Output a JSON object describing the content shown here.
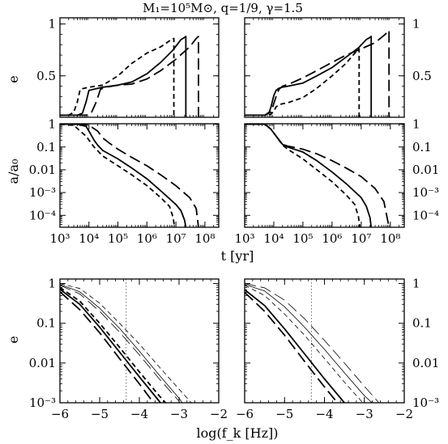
{
  "figure": {
    "title": "M₁=10⁵M⊙, q=1/9, γ=1.5",
    "ecc_label": "e",
    "sma_label": "a/a₀",
    "time_label": "t [yr]",
    "freq_label": "log(f_k [Hz])",
    "ecc_bottom_label": "e"
  },
  "chart_data": [
    {
      "id": "ecc_vs_time_left",
      "type": "line",
      "xscale": "log",
      "xlim": [
        1000,
        300000000
      ],
      "ylim": [
        0.1,
        1.06
      ],
      "ytick_labels": [
        "0.5",
        "1"
      ],
      "ytick_values": [
        0.5,
        1
      ],
      "xtick_labels": [],
      "ylabel": "e",
      "series": [
        {
          "style": "solid",
          "x": [
            1000,
            4000,
            6000,
            8000,
            10000,
            30000,
            100000,
            300000,
            1000000,
            3000000,
            8000000,
            15000000,
            20000000,
            22000000,
            22000000,
            22500000
          ],
          "y": [
            0.12,
            0.12,
            0.14,
            0.25,
            0.36,
            0.39,
            0.41,
            0.44,
            0.52,
            0.63,
            0.75,
            0.85,
            0.87,
            0.88,
            0.12,
            0.1
          ]
        },
        {
          "style": "shortdash",
          "x": [
            1000,
            2000,
            3000,
            4000,
            5000,
            10000,
            30000,
            100000,
            300000,
            1000000,
            3000000,
            7000000,
            8500000,
            8500000,
            9000000
          ],
          "y": [
            0.12,
            0.12,
            0.15,
            0.25,
            0.37,
            0.39,
            0.41,
            0.5,
            0.62,
            0.72,
            0.78,
            0.85,
            0.86,
            0.12,
            0.1
          ]
        },
        {
          "style": "longdash",
          "x": [
            1000,
            8000,
            12000,
            18000,
            25000,
            40000,
            100000,
            300000,
            1000000,
            3000000,
            10000000,
            30000000,
            50000000,
            60000000,
            60000000,
            62000000
          ],
          "y": [
            0.12,
            0.12,
            0.14,
            0.25,
            0.37,
            0.39,
            0.41,
            0.42,
            0.47,
            0.55,
            0.66,
            0.78,
            0.86,
            0.88,
            0.12,
            0.1
          ]
        }
      ]
    },
    {
      "id": "ecc_vs_time_right",
      "type": "line",
      "xscale": "log",
      "xlim": [
        1000,
        300000000
      ],
      "ylim": [
        0.1,
        1.06
      ],
      "ytick_labels": [
        "0.5",
        "1"
      ],
      "ytick_values": [
        0.5,
        1
      ],
      "xtick_labels": [],
      "ylabel": "e",
      "series": [
        {
          "style": "solid",
          "x": [
            1000,
            5000,
            7000,
            8000,
            10000,
            12000,
            15000,
            20000,
            30000,
            100000,
            300000,
            1000000,
            3000000,
            8000000,
            15000000,
            20000000,
            22000000,
            22000000,
            22500000
          ],
          "y": [
            0.12,
            0.12,
            0.15,
            0.2,
            0.31,
            0.36,
            0.38,
            0.39,
            0.4,
            0.43,
            0.5,
            0.58,
            0.68,
            0.77,
            0.85,
            0.87,
            0.88,
            0.12,
            0.1
          ]
        },
        {
          "style": "shortdash",
          "x": [
            1000,
            6000,
            8000,
            10000,
            12000,
            15000,
            20000,
            30000,
            100000,
            300000,
            1000000,
            3000000,
            7000000,
            8500000,
            8500000,
            9000000
          ],
          "y": [
            0.12,
            0.12,
            0.13,
            0.16,
            0.2,
            0.22,
            0.23,
            0.24,
            0.29,
            0.38,
            0.5,
            0.62,
            0.74,
            0.76,
            0.12,
            0.1
          ]
        },
        {
          "style": "longdash",
          "x": [
            1000,
            5000,
            8000,
            12000,
            15000,
            20000,
            40000,
            100000,
            300000,
            1000000,
            3000000,
            10000000,
            30000000,
            60000000,
            80000000,
            90000000,
            90000000,
            93000000
          ],
          "y": [
            0.12,
            0.12,
            0.15,
            0.3,
            0.37,
            0.4,
            0.43,
            0.48,
            0.55,
            0.63,
            0.7,
            0.76,
            0.82,
            0.89,
            0.92,
            0.94,
            0.12,
            0.1
          ]
        }
      ]
    },
    {
      "id": "sma_vs_time_left",
      "type": "line",
      "xscale": "log",
      "yscale": "log",
      "xlim": [
        1000,
        300000000
      ],
      "ylim": [
        3e-05,
        1.05
      ],
      "ytick_labels": [
        "1",
        "0.1",
        "0.01",
        "10⁻³",
        "10⁻⁴"
      ],
      "ytick_values": [
        1,
        0.1,
        0.01,
        0.001,
        0.0001
      ],
      "xtick_labels": [
        "10³",
        "10⁴",
        "10⁵",
        "10⁶",
        "10⁷",
        "10⁸"
      ],
      "xtick_values": [
        1000,
        10000,
        100000,
        1000000,
        10000000,
        100000000
      ],
      "ylabel": "a/a₀",
      "series": [
        {
          "style": "solid",
          "x": [
            1000,
            4000,
            8000,
            10000,
            15000,
            20000,
            30000,
            100000,
            300000,
            1000000,
            3000000,
            10000000,
            15000000,
            20000000,
            22000000
          ],
          "y": [
            1,
            1,
            0.8,
            0.5,
            0.2,
            0.12,
            0.07,
            0.03,
            0.012,
            0.004,
            0.0012,
            0.0003,
            0.00016,
            6e-05,
            3e-05
          ]
        },
        {
          "style": "shortdash",
          "x": [
            1000,
            3000,
            5000,
            8000,
            10000,
            15000,
            30000,
            100000,
            300000,
            1000000,
            3000000,
            6000000,
            8000000,
            9000000
          ],
          "y": [
            1,
            0.9,
            0.5,
            0.3,
            0.2,
            0.1,
            0.04,
            0.015,
            0.006,
            0.002,
            0.0006,
            0.00025,
            8e-05,
            3e-05
          ]
        },
        {
          "style": "longdash",
          "x": [
            1000,
            7000,
            10000,
            20000,
            30000,
            50000,
            100000,
            300000,
            1000000,
            3000000,
            10000000,
            30000000,
            50000000,
            60000000
          ],
          "y": [
            1,
            1,
            0.9,
            0.5,
            0.25,
            0.15,
            0.08,
            0.035,
            0.015,
            0.006,
            0.002,
            0.0006,
            0.0002,
            3e-05
          ]
        }
      ]
    },
    {
      "id": "sma_vs_time_right",
      "type": "line",
      "xscale": "log",
      "yscale": "log",
      "xlim": [
        1000,
        300000000
      ],
      "ylim": [
        3e-05,
        1.05
      ],
      "ytick_labels": [
        "1",
        "0.1",
        "0.01",
        "10⁻³",
        "10⁻⁴"
      ],
      "ytick_values": [
        1,
        0.1,
        0.01,
        0.001,
        0.0001
      ],
      "xtick_labels": [
        "10³",
        "10⁴",
        "10⁵",
        "10⁶",
        "10⁷",
        "10⁸"
      ],
      "xtick_values": [
        1000,
        10000,
        100000,
        1000000,
        10000000,
        100000000
      ],
      "ylabel": "a/a₀",
      "series": [
        {
          "style": "solid",
          "x": [
            1000,
            5000,
            8000,
            12000,
            20000,
            30000,
            100000,
            300000,
            1000000,
            3000000,
            10000000,
            15000000,
            20000000,
            22000000
          ],
          "y": [
            1,
            1,
            0.6,
            0.3,
            0.13,
            0.1,
            0.06,
            0.025,
            0.008,
            0.0025,
            0.0006,
            0.00025,
            8e-05,
            3e-05
          ]
        },
        {
          "style": "shortdash",
          "x": [
            1000,
            5000,
            8000,
            12000,
            20000,
            30000,
            100000,
            300000,
            1000000,
            3000000,
            6000000,
            8000000,
            9000000
          ],
          "y": [
            1,
            1,
            0.6,
            0.3,
            0.12,
            0.08,
            0.03,
            0.01,
            0.003,
            0.0008,
            0.0003,
            9e-05,
            3e-05
          ]
        },
        {
          "style": "longdash",
          "x": [
            1000,
            5000,
            8000,
            12000,
            20000,
            30000,
            100000,
            300000,
            1000000,
            3000000,
            10000000,
            30000000,
            60000000,
            90000000
          ],
          "y": [
            1,
            1,
            0.6,
            0.3,
            0.13,
            0.11,
            0.08,
            0.05,
            0.025,
            0.012,
            0.005,
            0.0015,
            0.0004,
            3e-05
          ]
        }
      ]
    },
    {
      "id": "ecc_vs_freq_left",
      "type": "line",
      "yscale": "log",
      "xlim": [
        -6,
        -2
      ],
      "ylim": [
        0.001,
        1.3
      ],
      "ytick_labels": [
        "1",
        "0.1",
        "0.01",
        "10⁻³"
      ],
      "ytick_values": [
        1,
        0.1,
        0.01,
        0.001
      ],
      "xtick_labels": [
        "−6",
        "−5",
        "−4",
        "−3",
        "−2"
      ],
      "xtick_values": [
        -6,
        -5,
        -4,
        -3,
        -2
      ],
      "ylabel": "e",
      "reference_x": -4.33,
      "series": [
        {
          "style": "longdash",
          "weight": "thick",
          "x": [
            -6,
            -5.5,
            -5,
            -4.5,
            -4,
            -3.5
          ],
          "y": [
            0.62,
            0.22,
            0.058,
            0.013,
            0.003,
            0.00065
          ]
        },
        {
          "style": "solid",
          "weight": "thick",
          "x": [
            -6,
            -5.5,
            -5,
            -4.5,
            -4,
            -3.5,
            -3.35
          ],
          "y": [
            0.72,
            0.3,
            0.08,
            0.019,
            0.0045,
            0.0011,
            0.0007
          ]
        },
        {
          "style": "shortdash",
          "weight": "thick",
          "x": [
            -6,
            -5.5,
            -5,
            -4.5,
            -4,
            -3.5,
            -3.3
          ],
          "y": [
            0.8,
            0.36,
            0.1,
            0.025,
            0.006,
            0.0015,
            0.0009
          ]
        },
        {
          "style": "longdash",
          "weight": "thin",
          "x": [
            -6,
            -5.5,
            -5,
            -4.5,
            -4,
            -3.5,
            -3,
            -2.95
          ],
          "y": [
            0.9,
            0.55,
            0.2,
            0.06,
            0.016,
            0.004,
            0.0011,
            0.0008
          ]
        },
        {
          "style": "solid",
          "weight": "thin",
          "x": [
            -6,
            -5.5,
            -5,
            -4.5,
            -4,
            -3.5,
            -3,
            -2.85
          ],
          "y": [
            0.95,
            0.62,
            0.24,
            0.075,
            0.02,
            0.005,
            0.0013,
            0.0008
          ]
        },
        {
          "style": "shortdash",
          "weight": "thin",
          "x": [
            -6,
            -5.5,
            -5,
            -4.5,
            -4,
            -3.5,
            -3,
            -2.6
          ],
          "y": [
            1,
            0.75,
            0.32,
            0.1,
            0.03,
            0.008,
            0.0022,
            0.0008
          ]
        }
      ]
    },
    {
      "id": "ecc_vs_freq_right",
      "type": "line",
      "yscale": "log",
      "xlim": [
        -6,
        -2
      ],
      "ylim": [
        0.001,
        1.3
      ],
      "ytick_labels": [
        "1",
        "0.1",
        "0.01",
        "10⁻³"
      ],
      "ytick_values": [
        1,
        0.1,
        0.01,
        0.001
      ],
      "xtick_labels": [
        "−6",
        "−5",
        "−4",
        "−3",
        "−2"
      ],
      "xtick_values": [
        -6,
        -5,
        -4,
        -3,
        -2
      ],
      "ylabel": "e",
      "reference_x": -4.33,
      "series": [
        {
          "style": "longdash",
          "weight": "thick",
          "x": [
            -6,
            -5.5,
            -5,
            -4.5,
            -4,
            -3.55
          ],
          "y": [
            0.6,
            0.2,
            0.05,
            0.011,
            0.0025,
            0.0007
          ]
        },
        {
          "style": "solid",
          "weight": "thick",
          "x": [
            -6,
            -5.5,
            -5,
            -4.5,
            -4,
            -3.5,
            -3.35
          ],
          "y": [
            0.7,
            0.28,
            0.072,
            0.017,
            0.004,
            0.001,
            0.0007
          ]
        },
        {
          "style": "shortdash",
          "weight": "thin",
          "x": [
            -6,
            -5.5,
            -5,
            -4.5,
            -4,
            -3.5,
            -3,
            -2.9
          ],
          "y": [
            0.9,
            0.5,
            0.17,
            0.05,
            0.013,
            0.0033,
            0.0009,
            0.0008
          ]
        },
        {
          "style": "solid",
          "weight": "thin",
          "x": [
            -6,
            -5.5,
            -5,
            -4.5,
            -4,
            -3.5,
            -3,
            -2.7
          ],
          "y": [
            0.95,
            0.65,
            0.26,
            0.08,
            0.022,
            0.0057,
            0.0015,
            0.0008
          ]
        },
        {
          "style": "longdash",
          "weight": "thin",
          "x": [
            -6,
            -5.5,
            -5,
            -4.5,
            -4,
            -3.5,
            -3,
            -2.55
          ],
          "y": [
            1,
            0.78,
            0.38,
            0.13,
            0.037,
            0.01,
            0.0026,
            0.0008
          ]
        }
      ]
    }
  ]
}
